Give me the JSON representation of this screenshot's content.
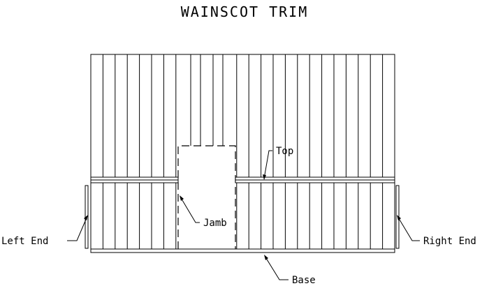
{
  "diagram": {
    "title": "WAINSCOT TRIM",
    "labels": {
      "top": "Top",
      "jamb": "Jamb",
      "left_end": "Left End",
      "right_end": "Right End",
      "base": "Base"
    },
    "colors": {
      "line": "#000000",
      "background": "#ffffff"
    }
  }
}
